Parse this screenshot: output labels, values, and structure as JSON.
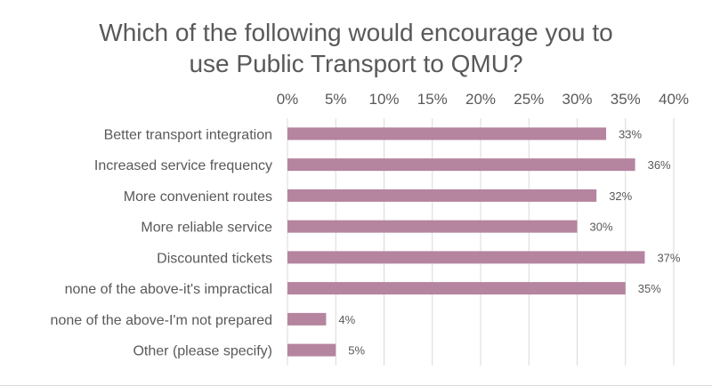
{
  "chart_data": {
    "type": "bar",
    "orientation": "horizontal",
    "title": "Which of the following would encourage you to use Public Transport to QMU?",
    "title_lines": [
      "Which of the following would encourage you to",
      "use Public Transport to QMU?"
    ],
    "categories": [
      "Better transport integration",
      "Increased service frequency",
      "More convenient routes",
      "More reliable service",
      "Discounted tickets",
      "none of the above-it's impractical",
      "none of the above-I'm not prepared",
      "Other (please specify)"
    ],
    "values": [
      33,
      36,
      32,
      30,
      37,
      35,
      4,
      5
    ],
    "data_labels": [
      "33%",
      "36%",
      "32%",
      "30%",
      "37%",
      "35%",
      "4%",
      "5%"
    ],
    "xlim": [
      0,
      40
    ],
    "x_ticks": [
      0,
      5,
      10,
      15,
      20,
      25,
      30,
      35,
      40
    ],
    "x_tick_labels": [
      "0%",
      "5%",
      "10%",
      "15%",
      "20%",
      "25%",
      "30%",
      "35%",
      "40%"
    ],
    "x_axis_position": "top",
    "xlabel": "",
    "ylabel": "",
    "grid": true,
    "legend": "none",
    "colors": {
      "bar": "#b5849f",
      "text": "#595959",
      "grid": "#d9d9d9"
    }
  }
}
